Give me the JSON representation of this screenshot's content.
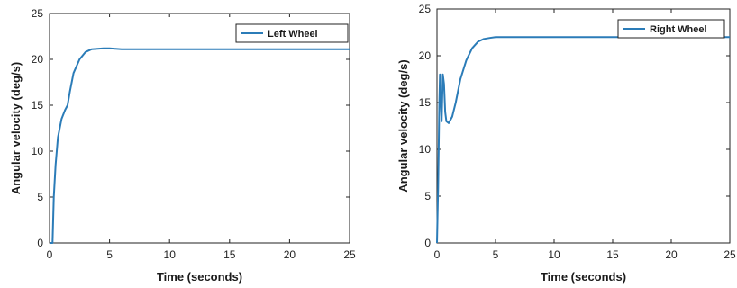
{
  "colors": {
    "series": "#2b7cb8",
    "axis": "#222222",
    "background": "#ffffff"
  },
  "chart_data": [
    {
      "type": "line",
      "title": "",
      "xlabel": "Time (seconds)",
      "ylabel": "Angular velocity (deg/s)",
      "xlim": [
        0,
        25
      ],
      "ylim": [
        0,
        25
      ],
      "xticks": [
        "0",
        "5",
        "10",
        "15",
        "20",
        "25"
      ],
      "yticks": [
        "0",
        "5",
        "10",
        "15",
        "20",
        "25"
      ],
      "grid": false,
      "legend_position": "top-right",
      "series": [
        {
          "name": "Left Wheel",
          "x": [
            0,
            0.25,
            0.35,
            0.5,
            0.7,
            1.0,
            1.3,
            1.5,
            1.7,
            2.0,
            2.5,
            3.0,
            3.5,
            4.0,
            4.5,
            5.0,
            5.5,
            6.0,
            8.0,
            10,
            15,
            20,
            25
          ],
          "y": [
            0,
            0,
            5.0,
            8.5,
            11.5,
            13.5,
            14.5,
            15.0,
            16.5,
            18.5,
            20.0,
            20.8,
            21.1,
            21.15,
            21.2,
            21.2,
            21.15,
            21.1,
            21.1,
            21.1,
            21.1,
            21.1,
            21.1
          ]
        }
      ]
    },
    {
      "type": "line",
      "title": "",
      "xlabel": "Time (seconds)",
      "ylabel": "Angular velocity (deg/s)",
      "xlim": [
        0,
        25
      ],
      "ylim": [
        0,
        25
      ],
      "xticks": [
        "0",
        "5",
        "10",
        "15",
        "20",
        "25"
      ],
      "yticks": [
        "0",
        "5",
        "10",
        "15",
        "20",
        "25"
      ],
      "grid": false,
      "legend_position": "top-right",
      "series": [
        {
          "name": "Right Wheel",
          "x": [
            0,
            0.1,
            0.2,
            0.25,
            0.3,
            0.4,
            0.5,
            0.6,
            0.7,
            0.8,
            1.0,
            1.3,
            1.6,
            2.0,
            2.5,
            3.0,
            3.5,
            4.0,
            4.5,
            5.0,
            6.0,
            8.0,
            10,
            15,
            20,
            25
          ],
          "y": [
            0,
            6.0,
            15.0,
            18.0,
            16.0,
            13.0,
            18.0,
            17.0,
            14.0,
            13.0,
            12.8,
            13.5,
            15.0,
            17.5,
            19.5,
            20.8,
            21.5,
            21.8,
            21.9,
            22.0,
            22.0,
            22.0,
            22.0,
            22.0,
            22.0,
            22.0
          ]
        }
      ]
    }
  ]
}
